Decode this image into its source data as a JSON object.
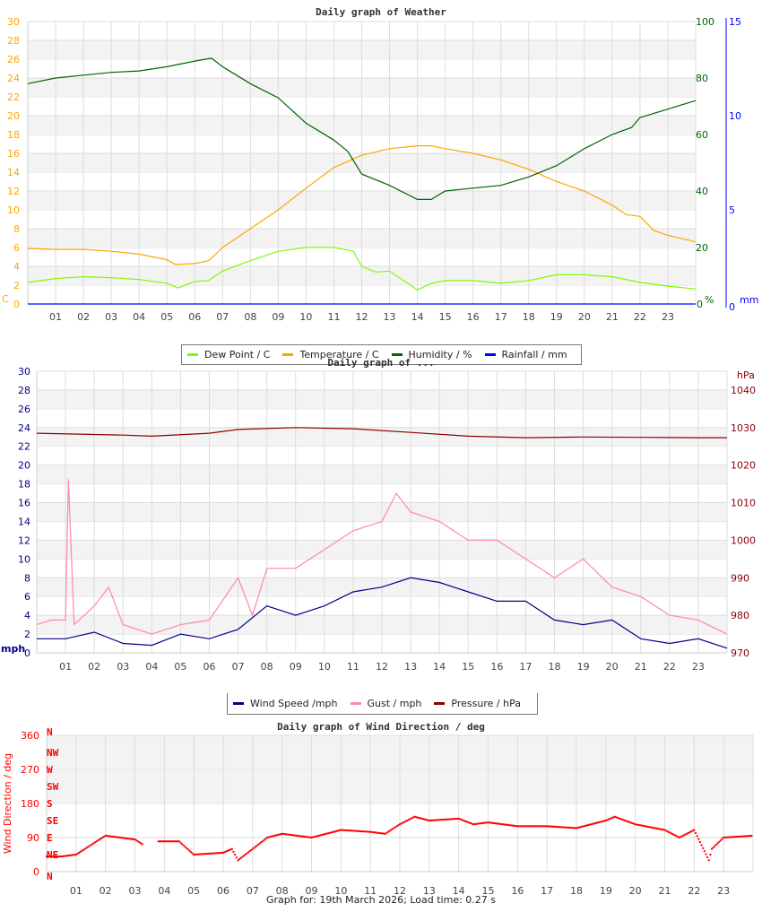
{
  "chart_data": [
    {
      "type": "line",
      "title": "Daily graph of Weather",
      "x_ticks": [
        "01",
        "02",
        "03",
        "04",
        "05",
        "06",
        "07",
        "08",
        "09",
        "10",
        "11",
        "12",
        "13",
        "14",
        "15",
        "16",
        "17",
        "18",
        "19",
        "20",
        "21",
        "22",
        "23"
      ],
      "xlim": [
        0,
        24
      ],
      "axes": {
        "left": {
          "label": "C",
          "range": [
            0,
            30
          ],
          "ticks": [
            0,
            2,
            4,
            6,
            8,
            10,
            12,
            14,
            16,
            18,
            20,
            22,
            24,
            26,
            28,
            30
          ],
          "color": "#ffa500"
        },
        "right": {
          "label": "%",
          "range": [
            0,
            100
          ],
          "ticks": [
            0,
            20,
            40,
            60,
            80,
            100
          ],
          "color": "#006400"
        },
        "right2": {
          "label": "mm",
          "range": [
            0,
            15
          ],
          "ticks": [
            0,
            5,
            10,
            15
          ],
          "color": "#0000ff"
        }
      },
      "grid": true,
      "legend_position": "bottom",
      "series": [
        {
          "name": "Dew Point / C",
          "axis": "left",
          "color": "#7cfc00",
          "x": [
            0,
            1,
            2,
            3,
            4,
            5,
            5.4,
            6,
            6.5,
            7,
            8,
            9,
            10,
            11,
            11.7,
            12,
            12.5,
            13,
            13.5,
            14,
            14.5,
            15,
            16,
            17,
            18,
            19,
            20,
            21,
            22,
            23,
            24
          ],
          "y": [
            2.3,
            2.7,
            2.9,
            2.8,
            2.6,
            2.2,
            1.7,
            2.4,
            2.5,
            3.5,
            4.6,
            5.6,
            6.0,
            6.0,
            5.6,
            4.0,
            3.4,
            3.5,
            2.5,
            1.5,
            2.2,
            2.5,
            2.5,
            2.2,
            2.5,
            3.1,
            3.1,
            2.9,
            2.3,
            1.9,
            1.6
          ]
        },
        {
          "name": "Temperature / C",
          "axis": "left",
          "color": "#ffa500",
          "x": [
            0,
            1,
            2,
            3,
            4,
            5,
            5.3,
            6,
            6.5,
            7,
            8,
            9,
            10,
            11,
            12,
            13,
            14,
            14.5,
            15,
            16,
            17,
            18,
            19,
            20,
            21,
            21.5,
            22,
            22.5,
            23,
            24
          ],
          "y": [
            5.9,
            5.8,
            5.8,
            5.6,
            5.3,
            4.7,
            4.2,
            4.3,
            4.6,
            6.0,
            8.0,
            10.0,
            12.3,
            14.5,
            15.8,
            16.5,
            16.8,
            16.8,
            16.5,
            16.0,
            15.3,
            14.3,
            13.0,
            12.0,
            10.5,
            9.5,
            9.3,
            7.8,
            7.3,
            6.6
          ]
        },
        {
          "name": "Humidity / %",
          "axis": "right",
          "color": "#006400",
          "x": [
            0,
            1,
            2,
            3,
            4,
            5,
            6,
            6.6,
            7,
            8,
            9,
            10,
            11,
            11.5,
            12,
            13,
            14,
            14.5,
            15,
            16,
            17,
            18,
            19,
            20,
            21,
            21.7,
            22,
            23,
            24
          ],
          "y": [
            78,
            80,
            81,
            82,
            82.5,
            84,
            86,
            87,
            84,
            78,
            73,
            64,
            58,
            54,
            46,
            42,
            37,
            37,
            40,
            41,
            42,
            45,
            49,
            55,
            60,
            62.5,
            66,
            69,
            72
          ]
        },
        {
          "name": "Rainfall / mm",
          "axis": "right2",
          "color": "#0000ff",
          "x": [
            0,
            24
          ],
          "y": [
            0,
            0
          ]
        }
      ]
    },
    {
      "type": "line",
      "title": "Daily graph of ...",
      "x_ticks": [
        "01",
        "02",
        "03",
        "04",
        "05",
        "06",
        "07",
        "08",
        "09",
        "10",
        "11",
        "12",
        "13",
        "14",
        "15",
        "16",
        "17",
        "18",
        "19",
        "20",
        "21",
        "22",
        "23"
      ],
      "xlim": [
        0,
        24
      ],
      "axes": {
        "left": {
          "label": "mph",
          "range": [
            0,
            30
          ],
          "ticks": [
            0,
            2,
            4,
            6,
            8,
            10,
            12,
            14,
            16,
            18,
            20,
            22,
            24,
            26,
            28,
            30
          ],
          "color": "#00008b"
        },
        "right": {
          "label": "hPa",
          "range": [
            970,
            1045
          ],
          "ticks": [
            970,
            980,
            990,
            1000,
            1010,
            1020,
            1030,
            1040
          ],
          "color": "#8b0000"
        }
      },
      "grid": true,
      "legend_position": "bottom",
      "series": [
        {
          "name": "Wind Speed /mph",
          "axis": "left",
          "color": "#00008b",
          "x": [
            0,
            1,
            2,
            3,
            4,
            5,
            6,
            7,
            8,
            9,
            10,
            11,
            12,
            13,
            14,
            15,
            16,
            17,
            18,
            19,
            20,
            21,
            22,
            23,
            24
          ],
          "y": [
            1.5,
            1.5,
            2.2,
            1.0,
            0.8,
            2.0,
            1.5,
            2.5,
            5.0,
            4.0,
            5.0,
            6.5,
            7.0,
            8.0,
            7.5,
            6.5,
            5.5,
            5.5,
            3.5,
            3.0,
            3.5,
            1.5,
            1.0,
            1.5,
            0.5
          ]
        },
        {
          "name": "Gust / mph",
          "axis": "left",
          "color": "#ff88aa",
          "x": [
            0,
            0.5,
            1,
            1.1,
            1.3,
            2,
            2.5,
            3,
            4,
            5,
            6,
            7,
            7.5,
            8,
            9,
            10,
            11,
            12,
            12.5,
            13,
            14,
            15,
            16,
            17,
            18,
            19,
            20,
            21,
            22,
            23,
            24
          ],
          "y": [
            3,
            3.5,
            3.5,
            18.5,
            3,
            5,
            7,
            3,
            2,
            3,
            3.5,
            8,
            4,
            9,
            9,
            11,
            13,
            14,
            17,
            15,
            14,
            12,
            12,
            10,
            8,
            10,
            7,
            6,
            4,
            3.5,
            2
          ]
        },
        {
          "name": "Pressure / hPa",
          "axis": "right",
          "color": "#8b0000",
          "x": [
            0,
            3,
            4,
            6,
            7,
            9,
            11,
            13,
            15,
            17,
            19,
            21,
            23,
            24
          ],
          "y": [
            1028.5,
            1028,
            1027.7,
            1028.5,
            1029.5,
            1030,
            1029.7,
            1028.7,
            1027.7,
            1027.3,
            1027.5,
            1027.4,
            1027.3,
            1027.3
          ]
        }
      ]
    },
    {
      "type": "scatter",
      "title": "Daily graph of Wind Direction / deg",
      "ylabel": "Wind Direction / deg",
      "x_ticks": [
        "01",
        "02",
        "03",
        "04",
        "05",
        "06",
        "07",
        "08",
        "09",
        "10",
        "11",
        "12",
        "13",
        "14",
        "15",
        "16",
        "17",
        "18",
        "19",
        "20",
        "21",
        "22",
        "23"
      ],
      "xlim": [
        0,
        24
      ],
      "ylim": [
        0,
        360
      ],
      "y_ticks": [
        0,
        90,
        180,
        270,
        360
      ],
      "compass_labels": [
        "N",
        "NE",
        "E",
        "SE",
        "S",
        "SW",
        "W",
        "NW",
        "N"
      ],
      "grid": true,
      "series": [
        {
          "color": "#ff0000",
          "x": [
            0,
            0.5,
            1,
            1.5,
            2,
            2.5,
            3,
            3.3,
            3.8,
            4.5,
            5,
            6,
            6.3,
            6.5,
            7,
            7.5,
            8,
            9,
            10,
            11,
            11.5,
            12,
            12.5,
            13,
            14,
            14.5,
            15,
            16,
            17,
            18,
            19,
            19.3,
            20,
            21,
            21.5,
            22,
            22.5,
            22.6,
            23,
            24
          ],
          "y": [
            40,
            40,
            45,
            70,
            95,
            90,
            85,
            70,
            80,
            80,
            45,
            50,
            60,
            30,
            60,
            90,
            100,
            90,
            110,
            105,
            100,
            125,
            145,
            135,
            140,
            125,
            130,
            120,
            120,
            115,
            135,
            145,
            125,
            110,
            90,
            110,
            30,
            60,
            90,
            95
          ]
        }
      ]
    }
  ],
  "legend1": [
    {
      "label": "Dew Point / C",
      "color": "#7cfc00"
    },
    {
      "label": "Temperature / C",
      "color": "#ffa500"
    },
    {
      "label": "Humidity / %",
      "color": "#006400"
    },
    {
      "label": "Rainfall / mm",
      "color": "#0000ff"
    }
  ],
  "legend2": [
    {
      "label": "Wind Speed /mph",
      "color": "#00008b"
    },
    {
      "label": "Gust / mph",
      "color": "#ff88aa"
    },
    {
      "label": "Pressure / hPa",
      "color": "#8b0000"
    }
  ],
  "footer": "Graph for: 19th March 2026; Load time: 0.27 s"
}
